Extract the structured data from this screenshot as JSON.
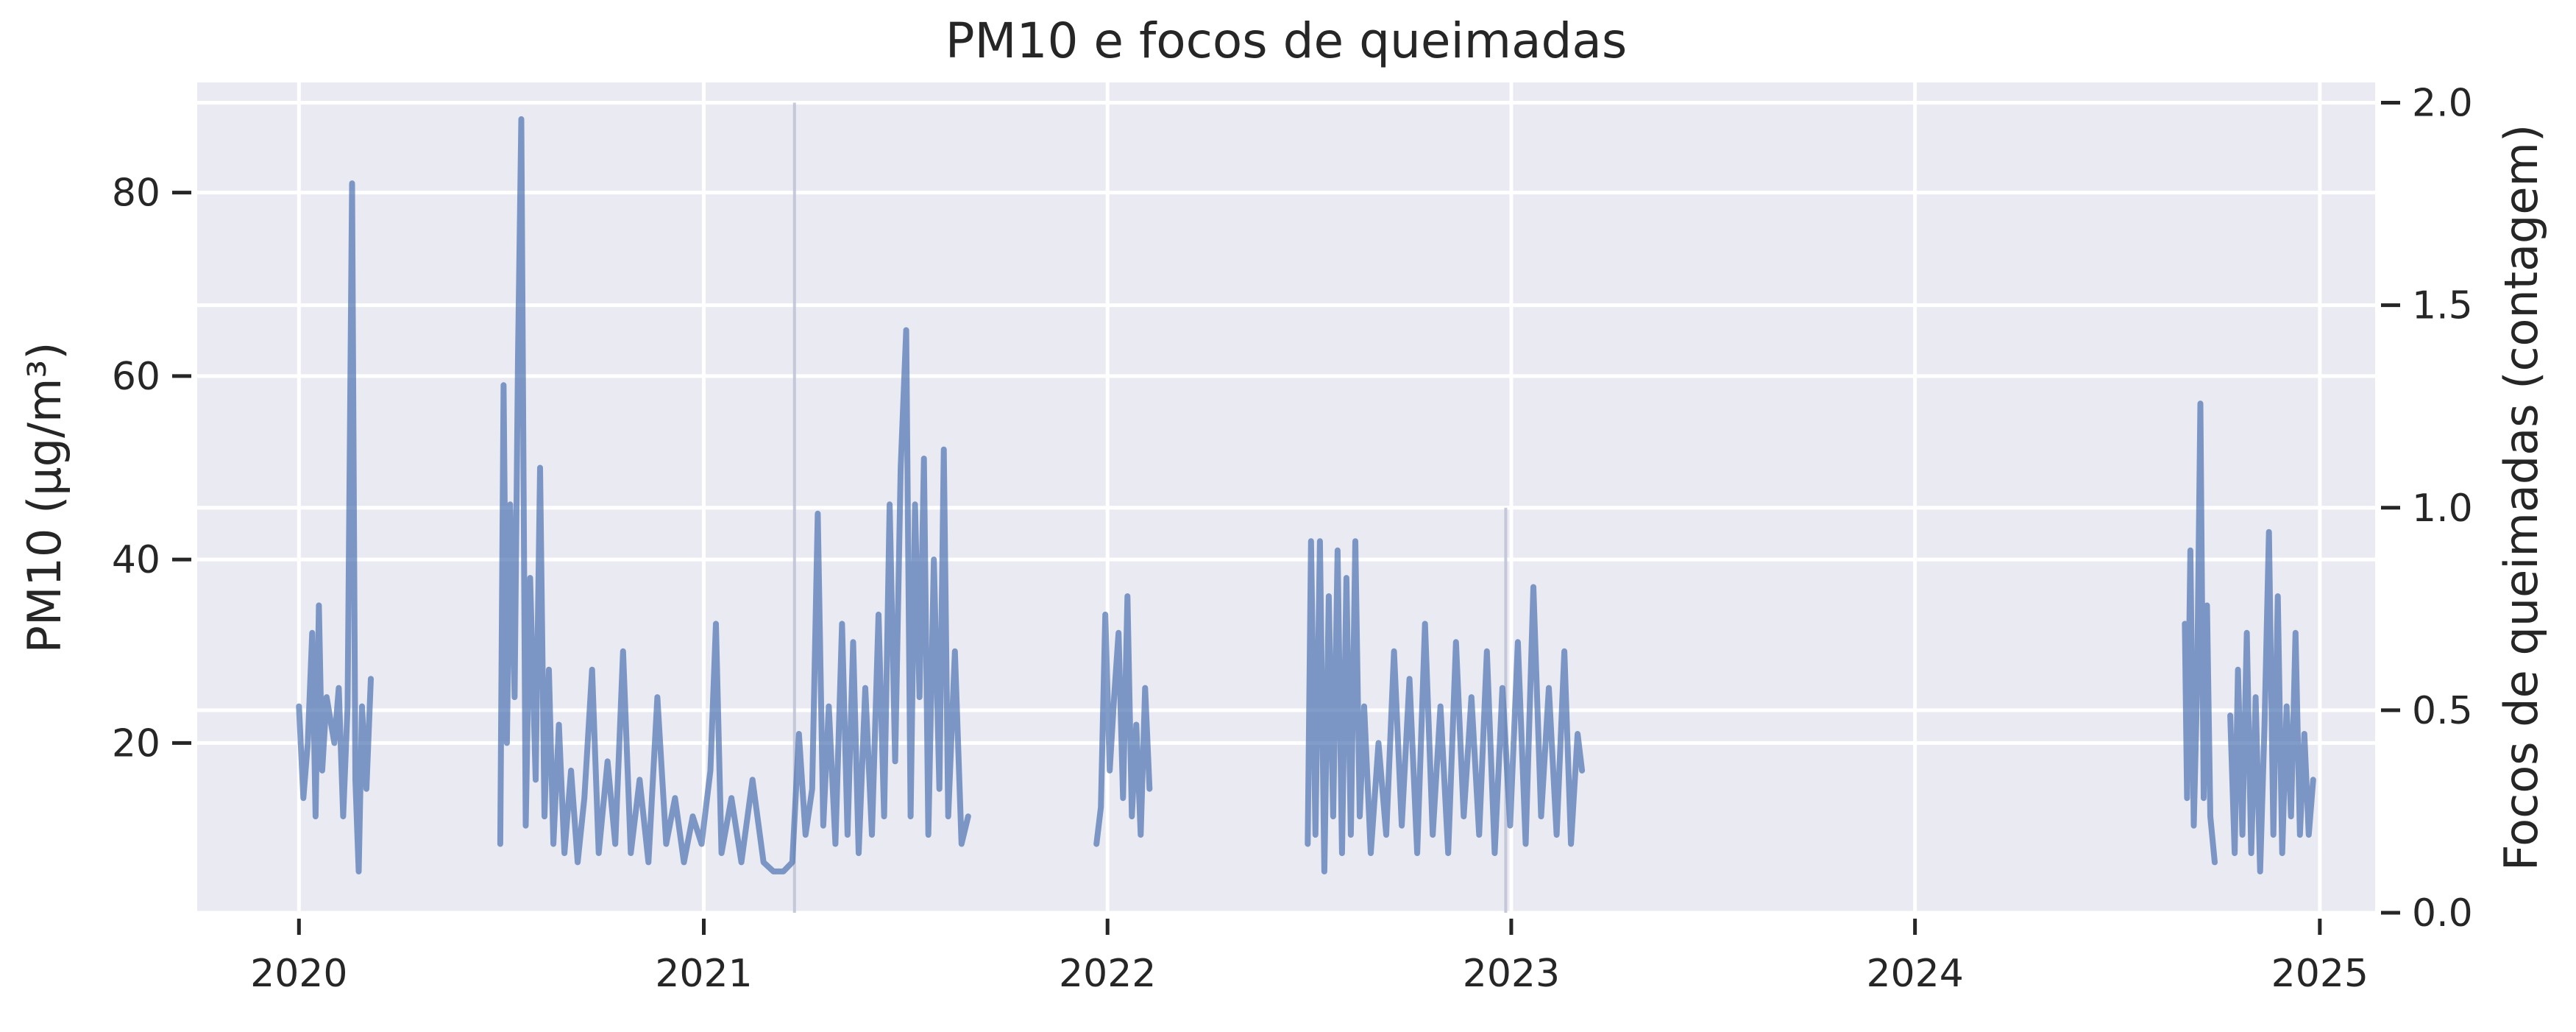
{
  "chart_data": {
    "type": "line",
    "title": "PM10 e focos de queimadas",
    "xlabel": "",
    "ylabel": "PM10 (µg/m³)",
    "y2label": "Focos de queimadas (contagem)",
    "xlim": [
      "2019-10-01",
      "2025-02-20"
    ],
    "ylim": [
      1.5,
      92
    ],
    "y2lim": [
      0,
      2.05
    ],
    "x_ticks": [
      "2020-01-01",
      "2021-01-01",
      "2022-01-01",
      "2023-01-01",
      "2024-01-01",
      "2025-01-01"
    ],
    "x_tick_labels": [
      "2020",
      "2021",
      "2022",
      "2023",
      "2024",
      "2025"
    ],
    "y_ticks": [
      20,
      40,
      60,
      80
    ],
    "y_tick_labels": [
      "20",
      "40",
      "60",
      "80"
    ],
    "y2_ticks": [
      0,
      0.5,
      1.0,
      1.5,
      2.0
    ],
    "y2_tick_labels": [
      "0.0",
      "0.5",
      "1.0",
      "1.5",
      "2.0"
    ],
    "grid": true,
    "series": [
      {
        "name": "PM10",
        "axis": "left",
        "color": "#4c72b0",
        "segments": [
          [
            [
              "2020-01-01",
              24
            ],
            [
              "2020-01-05",
              14
            ],
            [
              "2020-01-09",
              20
            ],
            [
              "2020-01-13",
              32
            ],
            [
              "2020-01-16",
              12
            ],
            [
              "2020-01-19",
              35
            ],
            [
              "2020-01-22",
              17
            ],
            [
              "2020-01-26",
              25
            ],
            [
              "2020-02-02",
              20
            ],
            [
              "2020-02-06",
              26
            ],
            [
              "2020-02-10",
              12
            ],
            [
              "2020-02-14",
              24
            ],
            [
              "2020-02-18",
              81
            ],
            [
              "2020-02-21",
              16
            ],
            [
              "2020-02-24",
              6
            ],
            [
              "2020-02-27",
              24
            ],
            [
              "2020-03-02",
              15
            ],
            [
              "2020-03-06",
              27
            ]
          ],
          [
            [
              "2020-07-01",
              9
            ],
            [
              "2020-07-04",
              59
            ],
            [
              "2020-07-07",
              20
            ],
            [
              "2020-07-10",
              46
            ],
            [
              "2020-07-14",
              25
            ],
            [
              "2020-07-17",
              62
            ],
            [
              "2020-07-20",
              88
            ],
            [
              "2020-07-24",
              11
            ],
            [
              "2020-07-28",
              38
            ],
            [
              "2020-08-02",
              16
            ],
            [
              "2020-08-06",
              50
            ],
            [
              "2020-08-10",
              12
            ],
            [
              "2020-08-14",
              28
            ],
            [
              "2020-08-18",
              9
            ],
            [
              "2020-08-23",
              22
            ],
            [
              "2020-08-28",
              8
            ],
            [
              "2020-09-03",
              17
            ],
            [
              "2020-09-09",
              7
            ],
            [
              "2020-09-15",
              14
            ],
            [
              "2020-09-22",
              28
            ],
            [
              "2020-09-28",
              8
            ],
            [
              "2020-10-06",
              18
            ],
            [
              "2020-10-13",
              9
            ],
            [
              "2020-10-20",
              30
            ],
            [
              "2020-10-27",
              8
            ],
            [
              "2020-11-04",
              16
            ],
            [
              "2020-11-12",
              7
            ],
            [
              "2020-11-20",
              25
            ],
            [
              "2020-11-28",
              9
            ],
            [
              "2020-12-06",
              14
            ],
            [
              "2020-12-14",
              7
            ],
            [
              "2020-12-22",
              12
            ],
            [
              "2020-12-30",
              9
            ],
            [
              "2021-01-07",
              17
            ],
            [
              "2021-01-12",
              33
            ],
            [
              "2021-01-17",
              8
            ],
            [
              "2021-01-26",
              14
            ],
            [
              "2021-02-04",
              7
            ],
            [
              "2021-02-14",
              16
            ],
            [
              "2021-02-24",
              7
            ],
            [
              "2021-03-05",
              6
            ],
            [
              "2021-03-14",
              6
            ],
            [
              "2021-03-22",
              7
            ],
            [
              "2021-03-28",
              21
            ],
            [
              "2021-04-03",
              10
            ],
            [
              "2021-04-09",
              15
            ],
            [
              "2021-04-14",
              45
            ],
            [
              "2021-04-19",
              11
            ],
            [
              "2021-04-24",
              24
            ],
            [
              "2021-04-30",
              9
            ],
            [
              "2021-05-06",
              33
            ],
            [
              "2021-05-11",
              10
            ],
            [
              "2021-05-16",
              31
            ],
            [
              "2021-05-21",
              8
            ],
            [
              "2021-05-27",
              26
            ],
            [
              "2021-06-02",
              10
            ],
            [
              "2021-06-08",
              34
            ],
            [
              "2021-06-13",
              12
            ],
            [
              "2021-06-18",
              46
            ],
            [
              "2021-06-23",
              18
            ],
            [
              "2021-06-28",
              50
            ],
            [
              "2021-07-03",
              65
            ],
            [
              "2021-07-07",
              12
            ],
            [
              "2021-07-11",
              46
            ],
            [
              "2021-07-15",
              25
            ],
            [
              "2021-07-19",
              51
            ],
            [
              "2021-07-23",
              10
            ],
            [
              "2021-07-28",
              40
            ],
            [
              "2021-08-02",
              15
            ],
            [
              "2021-08-06",
              52
            ],
            [
              "2021-08-10",
              12
            ],
            [
              "2021-08-16",
              30
            ],
            [
              "2021-08-22",
              9
            ],
            [
              "2021-08-28",
              12
            ]
          ],
          [
            [
              "2021-12-22",
              9
            ],
            [
              "2021-12-26",
              13
            ],
            [
              "2021-12-30",
              34
            ],
            [
              "2022-01-03",
              17
            ],
            [
              "2022-01-07",
              25
            ],
            [
              "2022-01-11",
              32
            ],
            [
              "2022-01-15",
              14
            ],
            [
              "2022-01-19",
              36
            ],
            [
              "2022-01-23",
              12
            ],
            [
              "2022-01-27",
              22
            ],
            [
              "2022-01-31",
              10
            ],
            [
              "2022-02-04",
              26
            ],
            [
              "2022-02-08",
              15
            ]
          ],
          [
            [
              "2022-07-01",
              9
            ],
            [
              "2022-07-04",
              42
            ],
            [
              "2022-07-08",
              10
            ],
            [
              "2022-07-12",
              42
            ],
            [
              "2022-07-16",
              6
            ],
            [
              "2022-07-20",
              36
            ],
            [
              "2022-07-24",
              12
            ],
            [
              "2022-07-28",
              41
            ],
            [
              "2022-08-01",
              8
            ],
            [
              "2022-08-05",
              38
            ],
            [
              "2022-08-09",
              10
            ],
            [
              "2022-08-13",
              42
            ],
            [
              "2022-08-17",
              12
            ],
            [
              "2022-08-21",
              24
            ],
            [
              "2022-08-27",
              8
            ],
            [
              "2022-09-03",
              20
            ],
            [
              "2022-09-10",
              10
            ],
            [
              "2022-09-17",
              30
            ],
            [
              "2022-09-24",
              11
            ],
            [
              "2022-10-01",
              27
            ],
            [
              "2022-10-08",
              8
            ],
            [
              "2022-10-15",
              33
            ],
            [
              "2022-10-22",
              10
            ],
            [
              "2022-10-29",
              24
            ],
            [
              "2022-11-05",
              8
            ],
            [
              "2022-11-12",
              31
            ],
            [
              "2022-11-19",
              12
            ],
            [
              "2022-11-26",
              25
            ],
            [
              "2022-12-03",
              10
            ],
            [
              "2022-12-10",
              30
            ],
            [
              "2022-12-17",
              8
            ],
            [
              "2022-12-24",
              26
            ],
            [
              "2022-12-31",
              11
            ],
            [
              "2023-01-07",
              31
            ],
            [
              "2023-01-14",
              9
            ],
            [
              "2023-01-21",
              37
            ],
            [
              "2023-01-28",
              12
            ],
            [
              "2023-02-04",
              26
            ],
            [
              "2023-02-11",
              10
            ],
            [
              "2023-02-18",
              30
            ],
            [
              "2023-02-24",
              9
            ],
            [
              "2023-03-02",
              21
            ],
            [
              "2023-03-06",
              17
            ]
          ],
          [
            [
              "2024-09-01",
              33
            ],
            [
              "2024-09-03",
              14
            ],
            [
              "2024-09-06",
              41
            ],
            [
              "2024-09-09",
              11
            ],
            [
              "2024-09-12",
              26
            ],
            [
              "2024-09-15",
              57
            ],
            [
              "2024-09-18",
              14
            ],
            [
              "2024-09-21",
              35
            ],
            [
              "2024-09-24",
              12
            ],
            [
              "2024-09-28",
              7
            ]
          ],
          [
            [
              "2024-10-12",
              23
            ],
            [
              "2024-10-16",
              8
            ],
            [
              "2024-10-19",
              28
            ],
            [
              "2024-10-23",
              10
            ],
            [
              "2024-10-27",
              32
            ],
            [
              "2024-10-31",
              8
            ],
            [
              "2024-11-04",
              25
            ],
            [
              "2024-11-08",
              6
            ],
            [
              "2024-11-12",
              22
            ],
            [
              "2024-11-16",
              43
            ],
            [
              "2024-11-20",
              10
            ],
            [
              "2024-11-24",
              36
            ],
            [
              "2024-11-28",
              8
            ],
            [
              "2024-12-02",
              24
            ],
            [
              "2024-12-06",
              12
            ],
            [
              "2024-12-10",
              32
            ],
            [
              "2024-12-14",
              10
            ],
            [
              "2024-12-18",
              21
            ],
            [
              "2024-12-22",
              10
            ],
            [
              "2024-12-26",
              16
            ]
          ]
        ]
      },
      {
        "name": "Focos de queimadas",
        "axis": "right",
        "color": "#c0c4d6",
        "bars": [
          [
            "2021-03-24",
            2.0
          ],
          [
            "2022-12-27",
            1.0
          ]
        ]
      }
    ]
  }
}
